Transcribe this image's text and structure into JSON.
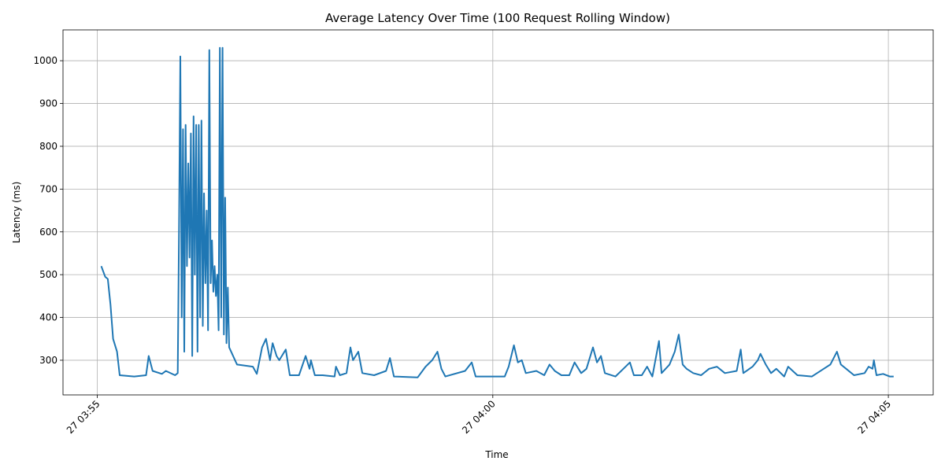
{
  "chart_data": {
    "type": "line",
    "title": "Average Latency Over Time (100 Request Rolling Window)",
    "x_label": "Time",
    "y_label": "Latency (ms)",
    "xlim": [
      "27 03:54:34",
      "27 04:05:34"
    ],
    "xticks": [
      {
        "value": "27 03:55:00",
        "label": "27 03:55"
      },
      {
        "value": "27 04:00:00",
        "label": "27 04:00"
      },
      {
        "value": "27 04:05:00",
        "label": "27 04:05"
      }
    ],
    "ylim": [
      219,
      1072
    ],
    "yticks": [
      300,
      400,
      500,
      600,
      700,
      800,
      900,
      1000
    ],
    "grid": true,
    "series": [
      {
        "name": "Latency",
        "color": "#1f77b4",
        "x": [
          "27 03:55:03",
          "27 03:55:06",
          "27 03:55:08",
          "27 03:55:10",
          "27 03:55:12",
          "27 03:55:15",
          "27 03:55:17",
          "27 03:55:28",
          "27 03:55:37",
          "27 03:55:39",
          "27 03:55:42",
          "27 03:55:49",
          "27 03:55:52",
          "27 03:55:59",
          "27 03:56:01",
          "27 03:56:02",
          "27 03:56:03",
          "27 03:56:04",
          "27 03:56:05",
          "27 03:56:06",
          "27 03:56:07",
          "27 03:56:08",
          "27 03:56:09",
          "27 03:56:10",
          "27 03:56:11",
          "27 03:56:12",
          "27 03:56:13",
          "27 03:56:14",
          "27 03:56:15",
          "27 03:56:16",
          "27 03:56:17",
          "27 03:56:18",
          "27 03:56:19",
          "27 03:56:20",
          "27 03:56:21",
          "27 03:56:22",
          "27 03:56:23",
          "27 03:56:24",
          "27 03:56:25",
          "27 03:56:26",
          "27 03:56:27",
          "27 03:56:28",
          "27 03:56:29",
          "27 03:56:30",
          "27 03:56:31",
          "27 03:56:32",
          "27 03:56:33",
          "27 03:56:34",
          "27 03:56:35",
          "27 03:56:36",
          "27 03:56:37",
          "27 03:56:38",
          "27 03:56:39",
          "27 03:56:40",
          "27 03:56:46",
          "27 03:56:58",
          "27 03:57:01",
          "27 03:57:05",
          "27 03:57:08",
          "27 03:57:11",
          "27 03:57:13",
          "27 03:57:16",
          "27 03:57:18",
          "27 03:57:23",
          "27 03:57:26",
          "27 03:57:33",
          "27 03:57:38",
          "27 03:57:41",
          "27 03:57:42",
          "27 03:57:45",
          "27 03:57:51",
          "27 03:58:00",
          "27 03:58:01",
          "27 03:58:04",
          "27 03:58:09",
          "27 03:58:12",
          "27 03:58:14",
          "27 03:58:18",
          "27 03:58:21",
          "27 03:58:30",
          "27 03:58:39",
          "27 03:58:42",
          "27 03:58:45",
          "27 03:59:03",
          "27 03:59:09",
          "27 03:59:14",
          "27 03:59:18",
          "27 03:59:21",
          "27 03:59:24",
          "27 03:59:39",
          "27 03:59:44",
          "27 03:59:47",
          "27 04:00:09",
          "27 04:00:12",
          "27 04:00:16",
          "27 04:00:19",
          "27 04:00:22",
          "27 04:00:25",
          "27 04:00:33",
          "27 04:00:39",
          "27 04:00:43",
          "27 04:00:47",
          "27 04:00:52",
          "27 04:00:58",
          "27 04:01:02",
          "27 04:01:07",
          "27 04:01:11",
          "27 04:01:16",
          "27 04:01:19",
          "27 04:01:22",
          "27 04:01:25",
          "27 04:01:33",
          "27 04:01:39",
          "27 04:01:44",
          "27 04:01:47",
          "27 04:01:53",
          "27 04:01:57",
          "27 04:02:01",
          "27 04:02:06",
          "27 04:02:08",
          "27 04:02:14",
          "27 04:02:18",
          "27 04:02:21",
          "27 04:02:24",
          "27 04:02:27",
          "27 04:02:32",
          "27 04:02:38",
          "27 04:02:44",
          "27 04:02:50",
          "27 04:02:56",
          "27 04:03:05",
          "27 04:03:08",
          "27 04:03:10",
          "27 04:03:17",
          "27 04:03:21",
          "27 04:03:23",
          "27 04:03:27",
          "27 04:03:31",
          "27 04:03:35",
          "27 04:03:41",
          "27 04:03:44",
          "27 04:03:51",
          "27 04:04:02",
          "27 04:04:11",
          "27 04:04:16",
          "27 04:04:21",
          "27 04:04:24",
          "27 04:04:28",
          "27 04:04:34",
          "27 04:04:42",
          "27 04:04:45",
          "27 04:04:48",
          "27 04:04:49",
          "27 04:04:51",
          "27 04:04:56",
          "27 04:05:01",
          "27 04:05:04"
        ],
        "values": [
          520,
          495,
          490,
          430,
          350,
          320,
          265,
          262,
          265,
          310,
          275,
          268,
          275,
          265,
          270,
          600,
          1010,
          400,
          840,
          320,
          850,
          520,
          760,
          540,
          830,
          310,
          870,
          500,
          850,
          320,
          850,
          400,
          860,
          380,
          690,
          480,
          650,
          370,
          1025,
          480,
          580,
          460,
          520,
          450,
          500,
          370,
          1030,
          400,
          1030,
          360,
          680,
          340,
          470,
          330,
          290,
          285,
          268,
          330,
          350,
          300,
          340,
          310,
          300,
          325,
          265,
          265,
          310,
          280,
          300,
          265,
          265,
          262,
          285,
          265,
          270,
          330,
          300,
          320,
          270,
          265,
          275,
          305,
          262,
          260,
          285,
          300,
          320,
          280,
          262,
          275,
          295,
          262,
          262,
          285,
          335,
          295,
          300,
          270,
          275,
          265,
          290,
          275,
          265,
          265,
          295,
          270,
          280,
          330,
          295,
          310,
          270,
          262,
          280,
          295,
          265,
          265,
          285,
          262,
          345,
          270,
          290,
          320,
          360,
          290,
          280,
          270,
          265,
          280,
          285,
          270,
          275,
          325,
          270,
          285,
          300,
          315,
          290,
          270,
          280,
          262,
          285,
          265,
          262,
          280,
          290,
          320,
          290,
          280,
          265,
          270,
          285,
          280,
          300,
          265,
          268,
          262,
          262
        ]
      }
    ]
  }
}
